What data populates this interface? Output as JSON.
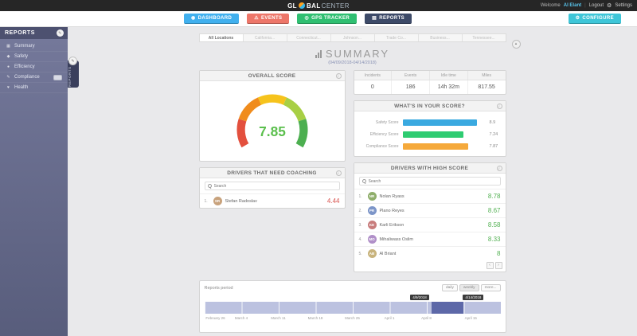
{
  "header": {
    "logo_gl": "GL",
    "logo_bal": "BAL",
    "logo_center": "CENTER",
    "welcome": "Welcome",
    "user": "Al Elant",
    "logout": "Logout",
    "settings": "Settings"
  },
  "nav": {
    "dashboard": "DASHBOARD",
    "events": "EVENTS",
    "gps_tracker": "GPS TRACKER",
    "reports": "REPORTS",
    "configure": "CONFIGURE",
    "colors": {
      "dashboard": "#41b0ee",
      "events": "#ed7669",
      "gps_tracker": "#2fbf71",
      "reports": "#3d4a68",
      "configure": "#3ec6d8"
    }
  },
  "sidebar": {
    "title": "REPORTS",
    "items": [
      {
        "label": "Summary"
      },
      {
        "label": "Safety"
      },
      {
        "label": "Efficiency"
      },
      {
        "label": "Compliance"
      },
      {
        "label": "Health"
      }
    ],
    "edge_tab": "REPORTS"
  },
  "tabs": [
    "All Locations",
    "California...",
    "Connecticut...",
    "Johnson...",
    "Trade Co...",
    "Business...",
    "Tennessee..."
  ],
  "page": {
    "title": "SUMMARY",
    "subtitle": "(04/09/2018-04/14/2018)"
  },
  "overall_score": {
    "title": "OVERALL SCORE",
    "value": "7.85",
    "color": "#5bbf4d"
  },
  "stats": {
    "headers": [
      "Incidents",
      "Events",
      "Idle time",
      "Miles"
    ],
    "values": [
      "0",
      "186",
      "14h 32m",
      "817.55"
    ]
  },
  "score_breakdown": {
    "title": "WHAT'S IN YOUR SCORE?",
    "bars": [
      {
        "label": "Safety Score",
        "value": 8.9,
        "display": "8.9",
        "color": "#3aa9e0"
      },
      {
        "label": "Efficiency Score",
        "value": 7.24,
        "display": "7.24",
        "color": "#2ecc71"
      },
      {
        "label": "Compliance Score",
        "value": 7.87,
        "display": "7.87",
        "color": "#f5a93b"
      }
    ]
  },
  "coaching": {
    "title": "DRIVERS THAT NEED COACHING",
    "search_placeholder": "Search",
    "rows": [
      {
        "rank": "1.",
        "name": "Stefan Radoslav",
        "score": "4.44",
        "initials": "SR",
        "avatar_color": "#c8a27c"
      }
    ]
  },
  "high_score": {
    "title": "DRIVERS WITH HIGH SCORE",
    "search_placeholder": "Search",
    "rows": [
      {
        "rank": "1.",
        "name": "Nolan Ryass",
        "score": "8.78",
        "initials": "NR",
        "avatar_color": "#8fae6b"
      },
      {
        "rank": "2.",
        "name": "Plano Reyes",
        "score": "8.67",
        "initials": "PR",
        "avatar_color": "#7c95c8"
      },
      {
        "rank": "3.",
        "name": "Karli Erikson",
        "score": "8.58",
        "initials": "KE",
        "avatar_color": "#c87c7c"
      },
      {
        "rank": "4.",
        "name": "Mihaliwass Oslim",
        "score": "8.33",
        "initials": "MO",
        "avatar_color": "#b08fc8"
      },
      {
        "rank": "5.",
        "name": "Al Briant",
        "score": "8",
        "initials": "AB",
        "avatar_color": "#c8b37c"
      }
    ]
  },
  "timeline": {
    "title": "Reports period",
    "buttons": [
      "daily",
      "weekly",
      "more..."
    ],
    "selection_start_label": "4/9/2018",
    "selection_end_label": "4/14/2018",
    "selection_left": "76.8%",
    "selection_width": "10.8%",
    "axis_labels": [
      "February 26",
      "March 4",
      "March 11",
      "March 18",
      "March 25",
      "April 1",
      "April 8",
      "April 15"
    ],
    "bar_color": "#bcc2e0",
    "selection_color": "#5d68a8"
  },
  "icons": {
    "gear": "⚙",
    "edit": "✎",
    "info": "i",
    "prev": "‹",
    "next": "›",
    "collapse": "▴",
    "dashboard": "◉",
    "events": "⚠",
    "gps": "◎",
    "reports_nav": "▤",
    "configure": "⚙",
    "summary": "▦",
    "safety": "◆",
    "efficiency": "●",
    "compliance": "✎",
    "health": "♥"
  },
  "chart_data": [
    {
      "type": "gauge",
      "title": "OVERALL SCORE",
      "value": 7.85,
      "range": [
        0,
        10
      ],
      "color_stops": [
        "#e3503e",
        "#f08c1d",
        "#f6c31c",
        "#a8cf45",
        "#4caf50"
      ]
    },
    {
      "type": "bar",
      "orientation": "horizontal",
      "title": "WHAT'S IN YOUR SCORE?",
      "categories": [
        "Safety Score",
        "Efficiency Score",
        "Compliance Score"
      ],
      "values": [
        8.9,
        7.24,
        7.87
      ],
      "xlim": [
        0,
        10
      ],
      "grid": false,
      "legend": false
    },
    {
      "type": "table",
      "title": "fleet totals",
      "categories": [
        "Incidents",
        "Events",
        "Idle time",
        "Miles"
      ],
      "values": [
        "0",
        "186",
        "14h 32m",
        "817.55"
      ]
    }
  ]
}
